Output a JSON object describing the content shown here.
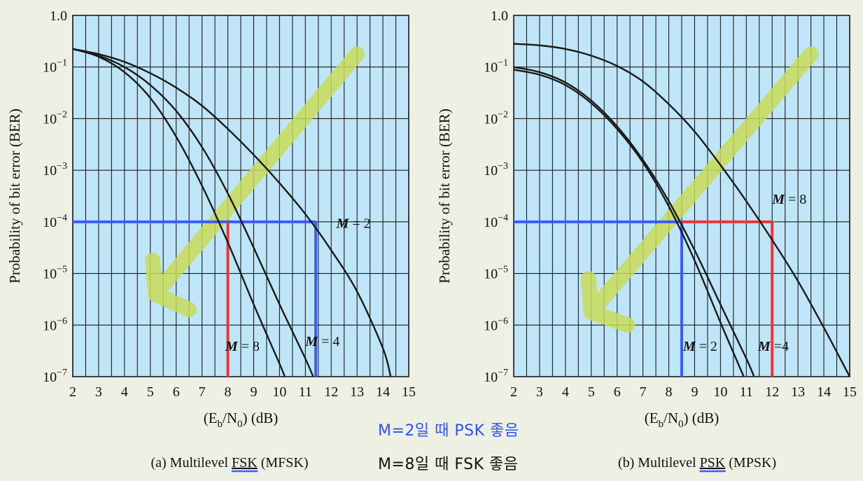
{
  "colors": {
    "plot_bg": "#bfe6f8",
    "grid": "#1a1a1a",
    "curve": "#1a1a1a",
    "blue": "#3a5cff",
    "red": "#ee3333",
    "arrow": "#c8da5a",
    "note_blue": "#2a52ff",
    "note_black": "#111111"
  },
  "chart_data": [
    {
      "type": "line",
      "title": "(a) Multilevel FSK (MFSK)",
      "title_prefix": "(a) Multilevel ",
      "title_key": "FSK",
      "title_suffix": " (MFSK)",
      "xlabel": "(E_b/N_0) (dB)",
      "ylabel": "Probability of bit error (BER)",
      "xlim": [
        2,
        15
      ],
      "ylim_exp": [
        -7,
        0
      ],
      "x_ticks": [
        2,
        3,
        4,
        5,
        6,
        7,
        8,
        9,
        10,
        11,
        12,
        13,
        14,
        15
      ],
      "y_tick_labels": [
        "1.0",
        "10^-1",
        "10^-2",
        "10^-3",
        "10^-4",
        "10^-5",
        "10^-6",
        "10^-7"
      ],
      "series": [
        {
          "name": "M = 2",
          "x": [
            2,
            3,
            4,
            5,
            6,
            7,
            8,
            9,
            10,
            11,
            12,
            13,
            14,
            14.3
          ],
          "log10_y": [
            -0.65,
            -0.75,
            -0.9,
            -1.12,
            -1.4,
            -1.75,
            -2.2,
            -2.7,
            -3.25,
            -3.85,
            -4.55,
            -5.35,
            -6.45,
            -7
          ]
        },
        {
          "name": "M = 4",
          "x": [
            2,
            3,
            4,
            5,
            6,
            7,
            8,
            9,
            10,
            11,
            11.3
          ],
          "log10_y": [
            -0.65,
            -0.78,
            -1.0,
            -1.35,
            -1.85,
            -2.55,
            -3.45,
            -4.5,
            -5.6,
            -6.65,
            -7
          ]
        },
        {
          "name": "M = 8",
          "x": [
            2,
            3,
            4,
            5,
            6,
            7,
            8,
            9,
            10,
            10.2
          ],
          "log10_y": [
            -0.65,
            -0.8,
            -1.1,
            -1.6,
            -2.35,
            -3.3,
            -4.4,
            -5.6,
            -6.75,
            -7
          ]
        }
      ],
      "curve_labels": [
        {
          "prefix": "M",
          "text": " = 2",
          "x": 12.2,
          "log10_y": -4.12
        },
        {
          "prefix": "M",
          "text": " = 4",
          "x": 11.0,
          "log10_y": -6.4
        },
        {
          "prefix": "M",
          "text": " = 8",
          "x": 7.9,
          "log10_y": -6.5
        }
      ],
      "highlights": [
        {
          "color": "blue",
          "kind": "h",
          "from_x": 2,
          "to_x": 11.4,
          "log10_y": -4
        },
        {
          "color": "blue",
          "kind": "v",
          "x": 11.4,
          "from_log10_y": -4,
          "to_log10_y": -7
        },
        {
          "color": "red",
          "kind": "v",
          "x": 8,
          "from_log10_y": -4,
          "to_log10_y": -7
        }
      ],
      "arrow": {
        "from": [
          13,
          -0.75
        ],
        "to": [
          5.2,
          -5.4
        ],
        "hook": [
          6.5,
          -5.7
        ]
      }
    },
    {
      "type": "line",
      "title": "(b) Multilevel PSK (MPSK)",
      "title_prefix": "(b) Multilevel ",
      "title_key": "PSK",
      "title_suffix": " (MPSK)",
      "xlabel": "(E_b/N_0) (dB)",
      "ylabel": "Probability of bit error (BER)",
      "xlim": [
        2,
        15
      ],
      "ylim_exp": [
        -7,
        0
      ],
      "x_ticks": [
        2,
        3,
        4,
        5,
        6,
        7,
        8,
        9,
        10,
        11,
        12,
        13,
        14,
        15
      ],
      "y_tick_labels": [
        "1.0",
        "10^-1",
        "10^-2",
        "10^-3",
        "10^-4",
        "10^-5",
        "10^-6",
        "10^-7"
      ],
      "series": [
        {
          "name": "M = 8",
          "x": [
            2,
            3,
            4,
            5,
            6,
            7,
            8,
            9,
            10,
            11,
            12,
            13,
            14,
            15
          ],
          "log10_y": [
            -0.55,
            -0.58,
            -0.65,
            -0.78,
            -0.98,
            -1.28,
            -1.72,
            -2.25,
            -2.9,
            -3.6,
            -4.35,
            -5.15,
            -6.05,
            -7
          ]
        },
        {
          "name": "M = 4",
          "x": [
            2,
            3,
            4,
            5,
            6,
            7,
            8,
            9,
            10,
            11,
            11.3
          ],
          "log10_y": [
            -1.0,
            -1.1,
            -1.3,
            -1.65,
            -2.15,
            -2.8,
            -3.6,
            -4.55,
            -5.6,
            -6.65,
            -7
          ]
        },
        {
          "name": "M = 2",
          "x": [
            2,
            3,
            4,
            5,
            6,
            7,
            8,
            9,
            10,
            10.9
          ],
          "log10_y": [
            -1.05,
            -1.15,
            -1.35,
            -1.7,
            -2.2,
            -2.85,
            -3.7,
            -4.75,
            -5.95,
            -7
          ]
        }
      ],
      "curve_labels": [
        {
          "prefix": "M",
          "text": " = 8",
          "x": 12.0,
          "log10_y": -3.65
        },
        {
          "prefix": "M",
          "text": " = 2",
          "x": 8.55,
          "log10_y": -6.5
        },
        {
          "prefix": "M",
          "text": " =4",
          "x": 11.45,
          "log10_y": -6.5
        }
      ],
      "highlights": [
        {
          "color": "blue",
          "kind": "h",
          "from_x": 2,
          "to_x": 8.5,
          "log10_y": -4
        },
        {
          "color": "blue",
          "kind": "v",
          "x": 8.5,
          "from_log10_y": -4,
          "to_log10_y": -7
        },
        {
          "color": "red",
          "kind": "h",
          "from_x": 8.5,
          "to_x": 12,
          "log10_y": -4
        },
        {
          "color": "red",
          "kind": "v",
          "x": 12,
          "from_log10_y": -4,
          "to_log10_y": -7
        }
      ],
      "arrow": {
        "from": [
          13.5,
          -0.75
        ],
        "to": [
          5.0,
          -5.75
        ],
        "hook": [
          6.4,
          -6.0
        ]
      }
    }
  ],
  "notes": {
    "psk_note": "M=2일 때 PSK 좋음",
    "fsk_note": "M=8일 때 FSK 좋음"
  }
}
